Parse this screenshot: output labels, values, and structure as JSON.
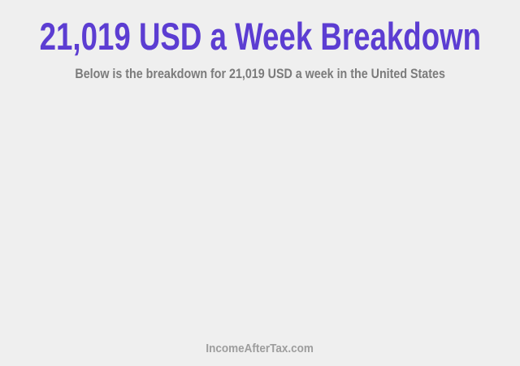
{
  "colors": {
    "background": "#efefef",
    "title": "#5c3dd2",
    "subtitle": "#7b7b7b",
    "watermark": "#9d9d9d"
  },
  "header": {
    "title": "21,019 USD a Week Breakdown",
    "subtitle": "Below is the breakdown for 21,019 USD a week in the United States"
  },
  "footer": {
    "watermark": "IncomeAfterTax.com"
  },
  "chart_data": {
    "type": "bar",
    "title": "21,019 USD a Week Breakdown",
    "subtitle": "Below is the breakdown for 21,019 USD a week in the United States",
    "categories": [],
    "values": [],
    "legend": [],
    "annotations": []
  }
}
